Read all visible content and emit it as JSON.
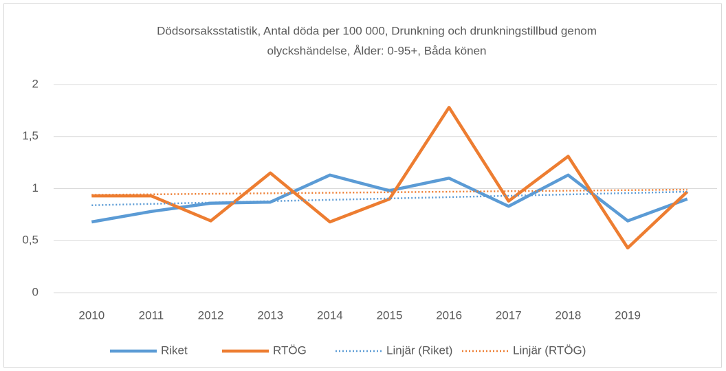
{
  "chart_data": {
    "type": "line",
    "title": [
      "Dödsorsaksstatistik, Antal döda per 100 000, Drunkning och drunkningstillbud genom",
      "olyckshändelse, Ålder: 0-95+, Båda könen"
    ],
    "categories": [
      "2010",
      "2011",
      "2012",
      "2013",
      "2014",
      "2015",
      "2016",
      "2017",
      "2018",
      "2019",
      null
    ],
    "series": [
      {
        "name": "Riket",
        "color": "#5b9bd5",
        "style": "solid",
        "values": [
          0.68,
          0.78,
          0.86,
          0.87,
          1.13,
          0.98,
          1.1,
          0.83,
          1.13,
          0.69,
          0.9
        ]
      },
      {
        "name": "RTÖG",
        "color": "#ed7d31",
        "style": "solid",
        "values": [
          0.93,
          0.93,
          0.69,
          1.15,
          0.68,
          0.9,
          1.78,
          0.88,
          1.31,
          0.43,
          0.97
        ]
      },
      {
        "name": "Linjär (Riket)",
        "color": "#5b9bd5",
        "style": "dotted",
        "values": [
          0.84,
          0.853,
          0.866,
          0.879,
          0.892,
          0.905,
          0.918,
          0.931,
          0.944,
          0.957,
          0.97
        ]
      },
      {
        "name": "Linjär (RTÖG)",
        "color": "#ed7d31",
        "style": "dotted",
        "values": [
          0.94,
          0.945,
          0.95,
          0.955,
          0.96,
          0.965,
          0.97,
          0.975,
          0.98,
          0.985,
          0.99
        ]
      }
    ],
    "ylim": [
      0,
      2
    ],
    "yticks": [
      0,
      {
        "value": 0.5,
        "label": "0,5"
      },
      1,
      {
        "value": 1.5,
        "label": "1,5"
      },
      2
    ],
    "grid": true,
    "legend": "bottom"
  }
}
